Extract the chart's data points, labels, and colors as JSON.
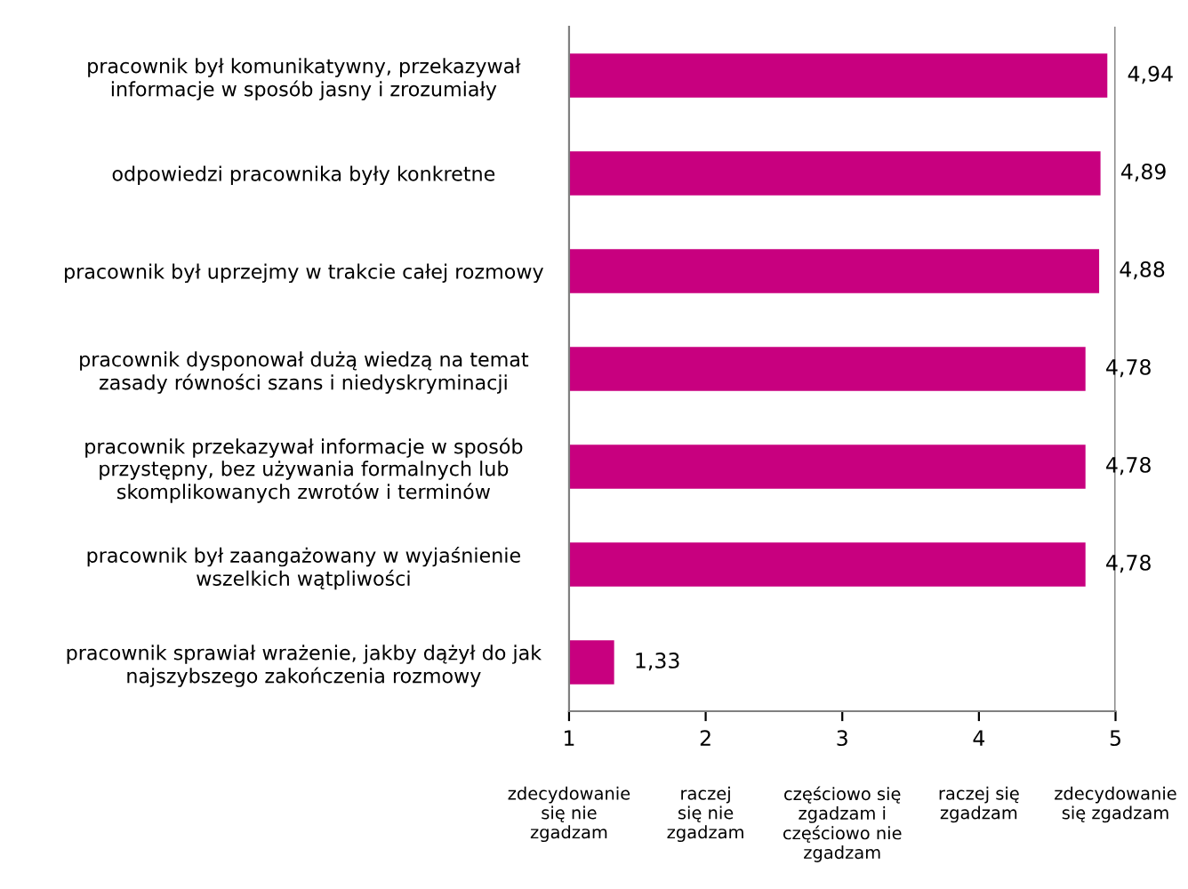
{
  "chart_data": {
    "type": "bar",
    "orientation": "horizontal",
    "categories": [
      "pracownik był komunikatywny, przekazywał\ninformacje w sposób jasny i zrozumiały",
      "odpowiedzi pracownika były konkretne",
      "pracownik był uprzejmy w trakcie całej rozmowy",
      "pracownik dysponował dużą wiedzą na temat\nzasady równości szans i niedyskryminacji",
      "pracownik przekazywał informacje w sposób\nprzystępny, bez używania formalnych lub\nskomplikowanych zwrotów i terminów",
      "pracownik był zaangażowany w wyjaśnienie\nwszelkich wątpliwości",
      "pracownik sprawiał wrażenie, jakby dążył do jak\nnajszybszego zakończenia rozmowy"
    ],
    "values": [
      4.94,
      4.89,
      4.88,
      4.78,
      4.78,
      4.78,
      1.33
    ],
    "value_labels": [
      "4,94",
      "4,89",
      "4,88",
      "4,78",
      "4,78",
      "4,78",
      "1,33"
    ],
    "color": "#c8007f",
    "xlim": [
      1,
      5
    ],
    "xticks": [
      1,
      2,
      3,
      4,
      5
    ],
    "annotations": [
      "zdecydowanie\nsię nie\nzgadzam",
      "raczej\nsię nie\nzgadzam",
      "częściowo się\nzgadzam i\nczęściowo nie\nzgadzam",
      "raczej się\nzgadzam",
      "zdecydowanie\nsię zgadzam"
    ],
    "ref_lines": [
      {
        "axis": "x",
        "value": 5,
        "label": null,
        "color": "#808080"
      }
    ],
    "grid": false,
    "legend": false
  }
}
